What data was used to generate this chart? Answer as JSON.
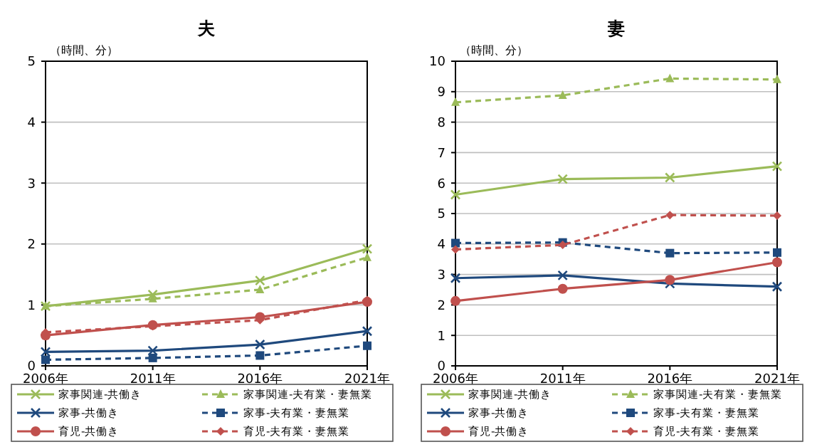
{
  "chart_data": [
    {
      "type": "line",
      "title": "夫",
      "ylabel": "（時間、分）",
      "categories": [
        "2006年",
        "2011年",
        "2016年",
        "2021年"
      ],
      "ylim": [
        0,
        5
      ],
      "yticks": [
        0,
        1,
        2,
        3,
        4,
        5
      ],
      "grid": "y",
      "legend": "bottom",
      "series": [
        {
          "name": "家事関連-共働き",
          "color": "#9bbb59",
          "marker": "cross",
          "line_style": "solid",
          "values": [
            0.98,
            1.17,
            1.4,
            1.92
          ]
        },
        {
          "name": "家事関連-夫有業・妻無業",
          "color": "#9bbb59",
          "marker": "triangle",
          "line_style": "dashed",
          "values": [
            0.98,
            1.1,
            1.25,
            1.78
          ]
        },
        {
          "name": "家事-共働き",
          "color": "#1f497d",
          "marker": "cross",
          "line_style": "solid",
          "values": [
            0.23,
            0.25,
            0.35,
            0.57
          ]
        },
        {
          "name": "家事-夫有業・妻無業",
          "color": "#1f497d",
          "marker": "square",
          "line_style": "dashed",
          "values": [
            0.1,
            0.13,
            0.17,
            0.33
          ]
        },
        {
          "name": "育児-共働き",
          "color": "#c0504d",
          "marker": "circle",
          "line_style": "solid",
          "values": [
            0.5,
            0.67,
            0.8,
            1.05
          ]
        },
        {
          "name": "育児-夫有業・妻無業",
          "color": "#c0504d",
          "marker": "diamond",
          "line_style": "dashed",
          "values": [
            0.55,
            0.65,
            0.75,
            1.08
          ]
        }
      ]
    },
    {
      "type": "line",
      "title": "妻",
      "ylabel": "（時間、分）",
      "categories": [
        "2006年",
        "2011年",
        "2016年",
        "2021年"
      ],
      "ylim": [
        0,
        10
      ],
      "yticks": [
        0,
        1,
        2,
        3,
        4,
        5,
        6,
        7,
        8,
        9,
        10
      ],
      "grid": "y",
      "legend": "bottom",
      "series": [
        {
          "name": "家事関連-共働き",
          "color": "#9bbb59",
          "marker": "cross",
          "line_style": "solid",
          "values": [
            5.62,
            6.13,
            6.18,
            6.55
          ]
        },
        {
          "name": "家事関連-夫有業・妻無業",
          "color": "#9bbb59",
          "marker": "triangle",
          "line_style": "dashed",
          "values": [
            8.65,
            8.88,
            9.43,
            9.4
          ]
        },
        {
          "name": "家事-共働き",
          "color": "#1f497d",
          "marker": "cross",
          "line_style": "solid",
          "values": [
            2.88,
            2.97,
            2.7,
            2.6
          ]
        },
        {
          "name": "家事-夫有業・妻無業",
          "color": "#1f497d",
          "marker": "square",
          "line_style": "dashed",
          "values": [
            4.03,
            4.05,
            3.7,
            3.72
          ]
        },
        {
          "name": "育児-共働き",
          "color": "#c0504d",
          "marker": "circle",
          "line_style": "solid",
          "values": [
            2.13,
            2.53,
            2.82,
            3.4
          ]
        },
        {
          "name": "育児-夫有業・妻無業",
          "color": "#c0504d",
          "marker": "diamond",
          "line_style": "dashed",
          "values": [
            3.82,
            3.97,
            4.95,
            4.93
          ]
        }
      ]
    }
  ]
}
